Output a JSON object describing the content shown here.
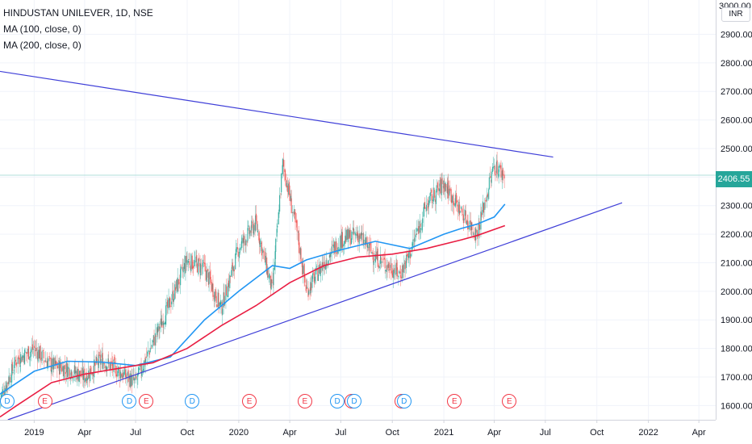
{
  "legend": {
    "symbol": "HINDUSTAN UNILEVER, 1D, NSE",
    "ma100": "MA (100, close, 0)",
    "ma200": "MA (200, close, 0)"
  },
  "price_axis": {
    "currency": "INR",
    "top_partial": "3000.00",
    "current_price": "2406.55"
  },
  "colors": {
    "up": "#26a69a",
    "down": "#ef5350",
    "ma100": "#2196f3",
    "ma200": "#e91e43",
    "trendline": "#3f3fd8",
    "price_tag": "#26a69a"
  },
  "chart_data": {
    "type": "candlestick",
    "ylim": [
      1550,
      3020
    ],
    "yticks": [
      1600,
      1700,
      1800,
      1900,
      2000,
      2100,
      2200,
      2300,
      2400,
      2500,
      2600,
      2700,
      2800,
      2900
    ],
    "ytick_labels": [
      "1600.00",
      "1700.00",
      "1800.00",
      "1900.00",
      "2000.00",
      "2100.00",
      "2200.00",
      "2300.00",
      "2400.00",
      "2500.00",
      "2600.00",
      "2700.00",
      "2800.00",
      "2900.00"
    ],
    "xlim": [
      "2018-11-01",
      "2022-05-01"
    ],
    "xticks": [
      {
        "label": "2019",
        "date": "2019-01-01"
      },
      {
        "label": "Apr",
        "date": "2019-04-01"
      },
      {
        "label": "Jul",
        "date": "2019-07-01"
      },
      {
        "label": "Oct",
        "date": "2019-10-01"
      },
      {
        "label": "2020",
        "date": "2020-01-01"
      },
      {
        "label": "Apr",
        "date": "2020-04-01"
      },
      {
        "label": "Jul",
        "date": "2020-07-01"
      },
      {
        "label": "Oct",
        "date": "2020-10-01"
      },
      {
        "label": "2021",
        "date": "2021-01-01"
      },
      {
        "label": "Apr",
        "date": "2021-04-01"
      },
      {
        "label": "Jul",
        "date": "2021-07-01"
      },
      {
        "label": "Oct",
        "date": "2021-10-01"
      },
      {
        "label": "2022",
        "date": "2022-01-01"
      },
      {
        "label": "Apr",
        "date": "2022-04-01"
      }
    ],
    "price_close": [
      [
        "2018-11-01",
        1620
      ],
      [
        "2018-12-01",
        1760
      ],
      [
        "2019-01-01",
        1800
      ],
      [
        "2019-02-01",
        1740
      ],
      [
        "2019-03-01",
        1730
      ],
      [
        "2019-04-01",
        1700
      ],
      [
        "2019-05-01",
        1760
      ],
      [
        "2019-06-01",
        1720
      ],
      [
        "2019-07-01",
        1680
      ],
      [
        "2019-08-01",
        1820
      ],
      [
        "2019-09-01",
        1960
      ],
      [
        "2019-10-01",
        2110
      ],
      [
        "2019-11-01",
        2080
      ],
      [
        "2019-12-01",
        1940
      ],
      [
        "2020-01-01",
        2150
      ],
      [
        "2020-02-01",
        2240
      ],
      [
        "2020-03-01",
        2000
      ],
      [
        "2020-03-20",
        2450
      ],
      [
        "2020-04-15",
        2200
      ],
      [
        "2020-05-01",
        2000
      ],
      [
        "2020-06-01",
        2100
      ],
      [
        "2020-07-01",
        2180
      ],
      [
        "2020-08-01",
        2200
      ],
      [
        "2020-09-01",
        2120
      ],
      [
        "2020-10-15",
        2060
      ],
      [
        "2020-11-01",
        2130
      ],
      [
        "2020-12-01",
        2300
      ],
      [
        "2021-01-01",
        2380
      ],
      [
        "2021-02-01",
        2280
      ],
      [
        "2021-03-01",
        2200
      ],
      [
        "2021-04-01",
        2440
      ],
      [
        "2021-04-20",
        2406.55
      ]
    ],
    "series": [
      {
        "name": "MA (100, close, 0)",
        "points": [
          [
            "2018-11-01",
            1640
          ],
          [
            "2019-01-01",
            1720
          ],
          [
            "2019-03-01",
            1755
          ],
          [
            "2019-05-01",
            1752
          ],
          [
            "2019-07-01",
            1740
          ],
          [
            "2019-09-01",
            1770
          ],
          [
            "2019-11-01",
            1900
          ],
          [
            "2020-01-01",
            2000
          ],
          [
            "2020-03-01",
            2090
          ],
          [
            "2020-04-01",
            2080
          ],
          [
            "2020-05-01",
            2110
          ],
          [
            "2020-07-01",
            2145
          ],
          [
            "2020-09-01",
            2175
          ],
          [
            "2020-11-01",
            2150
          ],
          [
            "2021-01-01",
            2200
          ],
          [
            "2021-02-01",
            2220
          ],
          [
            "2021-03-01",
            2235
          ],
          [
            "2021-04-01",
            2260
          ],
          [
            "2021-04-20",
            2305
          ]
        ]
      },
      {
        "name": "MA (200, close, 0)",
        "points": [
          [
            "2018-11-01",
            1560
          ],
          [
            "2018-12-01",
            1600
          ],
          [
            "2019-02-01",
            1680
          ],
          [
            "2019-04-01",
            1710
          ],
          [
            "2019-06-01",
            1730
          ],
          [
            "2019-08-01",
            1750
          ],
          [
            "2019-10-01",
            1800
          ],
          [
            "2019-12-01",
            1880
          ],
          [
            "2020-02-01",
            1950
          ],
          [
            "2020-04-01",
            2030
          ],
          [
            "2020-06-01",
            2090
          ],
          [
            "2020-08-01",
            2120
          ],
          [
            "2020-10-01",
            2130
          ],
          [
            "2020-12-01",
            2150
          ],
          [
            "2021-02-01",
            2180
          ],
          [
            "2021-03-01",
            2195
          ],
          [
            "2021-04-20",
            2230
          ]
        ]
      }
    ],
    "trendlines": [
      {
        "name": "resistance",
        "from": [
          "2018-11-01",
          2770
        ],
        "to": [
          "2021-07-15",
          2470
        ]
      },
      {
        "name": "support",
        "from": [
          "2018-11-15",
          1550
        ],
        "to": [
          "2021-11-15",
          2310
        ]
      }
    ],
    "events": [
      {
        "label": "D",
        "kind": "dividend",
        "date": "2018-11-05"
      },
      {
        "label": "E",
        "kind": "earnings",
        "date": "2019-01-20"
      },
      {
        "label": "D",
        "kind": "dividend",
        "date": "2019-06-20"
      },
      {
        "label": "E",
        "kind": "earnings",
        "date": "2019-07-20"
      },
      {
        "label": "D",
        "kind": "dividend",
        "date": "2019-10-10"
      },
      {
        "label": "E",
        "kind": "earnings",
        "date": "2020-01-20"
      },
      {
        "label": "E",
        "kind": "earnings",
        "date": "2020-04-28"
      },
      {
        "label": "D",
        "kind": "dividend",
        "date": "2020-06-25"
      },
      {
        "label": "E",
        "kind": "earnings",
        "date": "2020-07-20"
      },
      {
        "label": "D",
        "kind": "dividend",
        "date": "2020-07-25"
      },
      {
        "label": "E",
        "kind": "earnings",
        "date": "2020-10-18"
      },
      {
        "label": "D",
        "kind": "dividend",
        "date": "2020-10-22"
      },
      {
        "label": "E",
        "kind": "earnings",
        "date": "2021-01-20"
      },
      {
        "label": "E",
        "kind": "earnings",
        "date": "2021-04-28"
      }
    ]
  }
}
